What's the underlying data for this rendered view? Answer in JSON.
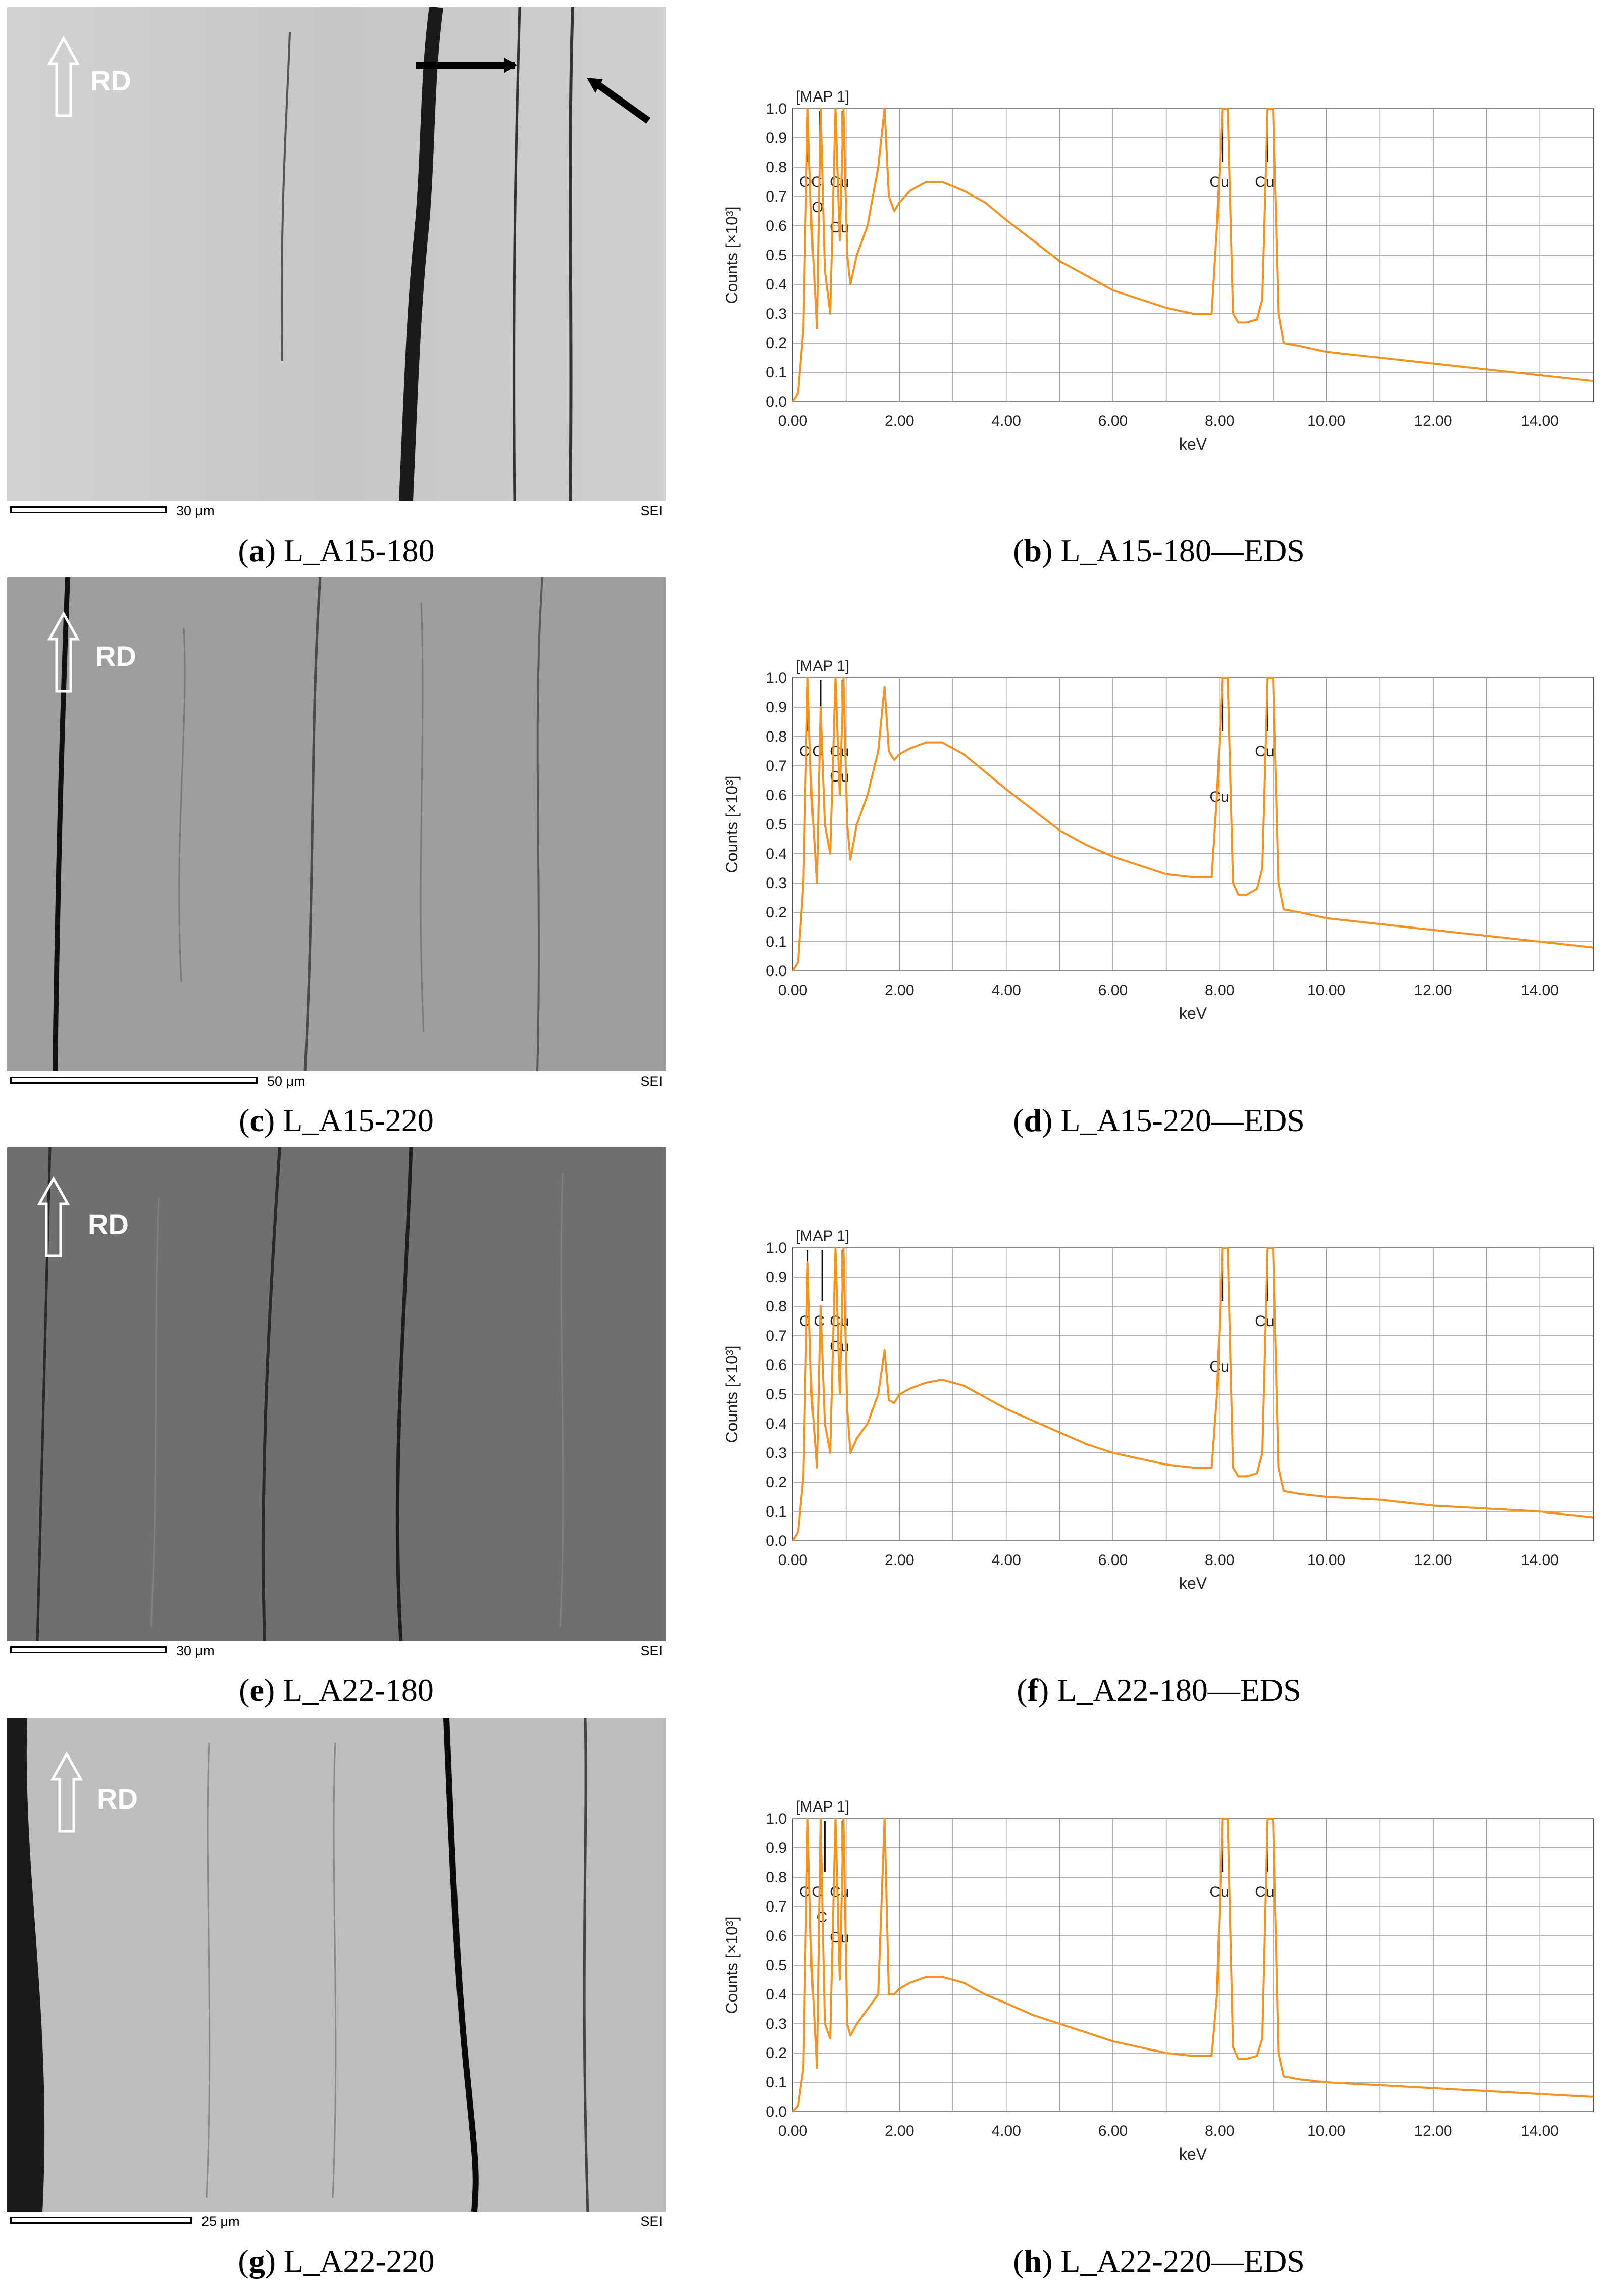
{
  "panels": [
    {
      "letter": "a",
      "caption": "L_A15-180",
      "scale_label": "30 μm",
      "detector": "SEI",
      "direction": "RD",
      "tone": "#c9c9c9"
    },
    {
      "letter": "c",
      "caption": "L_A15-220",
      "scale_label": "50 μm",
      "detector": "SEI",
      "direction": "RD",
      "tone": "#9b9b9b"
    },
    {
      "letter": "e",
      "caption": "L_A22-180",
      "scale_label": "30 μm",
      "detector": "SEI",
      "direction": "RD",
      "tone": "#6e6e6e"
    },
    {
      "letter": "g",
      "caption": "L_A22-220",
      "scale_label": "25 μm",
      "detector": "SEI",
      "direction": "RD",
      "tone": "#c0c0c0"
    }
  ],
  "eds_captions": [
    {
      "letter": "b",
      "caption": "L_A15-180—EDS"
    },
    {
      "letter": "d",
      "caption": "L_A15-220—EDS"
    },
    {
      "letter": "f",
      "caption": "L_A22-180—EDS"
    },
    {
      "letter": "h",
      "caption": "L_A22-220—EDS"
    }
  ],
  "chart_data": [
    {
      "type": "line",
      "title": "[MAP 1]",
      "xlabel": "keV",
      "ylabel": "Counts [×10³]",
      "xlim": [
        0,
        15
      ],
      "ylim": [
        0,
        1.0
      ],
      "x_ticks": [
        "0.00",
        "2.00",
        "4.00",
        "6.00",
        "8.00",
        "10.00",
        "12.00",
        "14.00"
      ],
      "y_ticks": [
        "0.0",
        "0.1",
        "0.2",
        "0.3",
        "0.4",
        "0.5",
        "0.6",
        "0.7",
        "0.8",
        "0.9",
        "1.0"
      ],
      "grid": true,
      "line_color": "#f39322",
      "series": [
        {
          "x": [
            0.0,
            0.1,
            0.2,
            0.28,
            0.35,
            0.45,
            0.52,
            0.6,
            0.7,
            0.8,
            0.88,
            0.95,
            1.02,
            1.08,
            1.2,
            1.4,
            1.6,
            1.72,
            1.8,
            1.9,
            2.0,
            2.2,
            2.5,
            2.8,
            3.2,
            3.6,
            4.0,
            4.5,
            5.0,
            5.5,
            6.0,
            6.5,
            7.0,
            7.5,
            7.85,
            7.95,
            8.05,
            8.15,
            8.25,
            8.35,
            8.5,
            8.7,
            8.8,
            8.9,
            9.0,
            9.1,
            9.2,
            9.5,
            10.0,
            11.0,
            12.0,
            13.0,
            14.0,
            15.0
          ],
          "y": [
            0.0,
            0.03,
            0.25,
            1.0,
            0.6,
            0.25,
            1.0,
            0.45,
            0.3,
            1.0,
            0.55,
            1.0,
            0.5,
            0.4,
            0.5,
            0.6,
            0.8,
            1.0,
            0.7,
            0.65,
            0.68,
            0.72,
            0.75,
            0.75,
            0.72,
            0.68,
            0.62,
            0.55,
            0.48,
            0.43,
            0.38,
            0.35,
            0.32,
            0.3,
            0.3,
            0.6,
            1.0,
            1.0,
            0.3,
            0.27,
            0.27,
            0.28,
            0.35,
            1.0,
            1.0,
            0.3,
            0.2,
            0.19,
            0.17,
            0.15,
            0.13,
            0.11,
            0.09,
            0.07
          ]
        }
      ],
      "element_markers": [
        {
          "label": "C",
          "x": 0.28
        },
        {
          "label": "C",
          "x": 0.5
        },
        {
          "label": "Cu",
          "x": 0.93
        },
        {
          "label": "O",
          "x": 0.52
        },
        {
          "label": "Cu",
          "x": 0.93
        },
        {
          "label": "Cu",
          "x": 8.05
        },
        {
          "label": "Cu",
          "x": 8.9
        }
      ]
    },
    {
      "type": "line",
      "title": "[MAP 1]",
      "xlabel": "keV",
      "ylabel": "Counts [×10³]",
      "xlim": [
        0,
        15
      ],
      "ylim": [
        0,
        1.0
      ],
      "x_ticks": [
        "0.00",
        "2.00",
        "4.00",
        "6.00",
        "8.00",
        "10.00",
        "12.00",
        "14.00"
      ],
      "y_ticks": [
        "0.0",
        "0.1",
        "0.2",
        "0.3",
        "0.4",
        "0.5",
        "0.6",
        "0.7",
        "0.8",
        "0.9",
        "1.0"
      ],
      "grid": true,
      "line_color": "#f39322",
      "series": [
        {
          "x": [
            0.0,
            0.1,
            0.2,
            0.28,
            0.35,
            0.45,
            0.52,
            0.6,
            0.7,
            0.8,
            0.88,
            0.95,
            1.02,
            1.08,
            1.2,
            1.4,
            1.6,
            1.72,
            1.8,
            1.9,
            2.0,
            2.2,
            2.5,
            2.8,
            3.2,
            3.6,
            4.0,
            4.5,
            5.0,
            5.5,
            6.0,
            6.5,
            7.0,
            7.5,
            7.85,
            7.95,
            8.05,
            8.15,
            8.25,
            8.35,
            8.5,
            8.7,
            8.8,
            8.9,
            9.0,
            9.1,
            9.2,
            9.5,
            10.0,
            11.0,
            12.0,
            13.0,
            14.0,
            15.0
          ],
          "y": [
            0.0,
            0.03,
            0.3,
            1.0,
            0.6,
            0.3,
            0.9,
            0.5,
            0.4,
            1.0,
            0.6,
            1.0,
            0.5,
            0.38,
            0.5,
            0.6,
            0.75,
            0.97,
            0.75,
            0.72,
            0.74,
            0.76,
            0.78,
            0.78,
            0.74,
            0.68,
            0.62,
            0.55,
            0.48,
            0.43,
            0.39,
            0.36,
            0.33,
            0.32,
            0.32,
            0.6,
            1.0,
            1.0,
            0.3,
            0.26,
            0.26,
            0.28,
            0.35,
            1.0,
            1.0,
            0.3,
            0.21,
            0.2,
            0.18,
            0.16,
            0.14,
            0.12,
            0.1,
            0.08
          ]
        }
      ],
      "element_markers": [
        {
          "label": "C",
          "x": 0.28
        },
        {
          "label": "C",
          "x": 0.52
        },
        {
          "label": "Cu",
          "x": 0.93
        },
        {
          "label": "Cu",
          "x": 0.93
        },
        {
          "label": "Cu",
          "x": 8.05
        },
        {
          "label": "Cu",
          "x": 8.9
        }
      ]
    },
    {
      "type": "line",
      "title": "[MAP 1]",
      "xlabel": "keV",
      "ylabel": "Counts [×10³]",
      "xlim": [
        0,
        15
      ],
      "ylim": [
        0,
        1.0
      ],
      "x_ticks": [
        "0.00",
        "2.00",
        "4.00",
        "6.00",
        "8.00",
        "10.00",
        "12.00",
        "14.00"
      ],
      "y_ticks": [
        "0.0",
        "0.1",
        "0.2",
        "0.3",
        "0.4",
        "0.5",
        "0.6",
        "0.7",
        "0.8",
        "0.9",
        "1.0"
      ],
      "grid": true,
      "line_color": "#f39322",
      "series": [
        {
          "x": [
            0.0,
            0.1,
            0.2,
            0.28,
            0.35,
            0.45,
            0.52,
            0.6,
            0.7,
            0.8,
            0.88,
            0.95,
            1.02,
            1.08,
            1.2,
            1.4,
            1.6,
            1.72,
            1.8,
            1.9,
            2.0,
            2.2,
            2.5,
            2.8,
            3.2,
            3.6,
            4.0,
            4.5,
            5.0,
            5.5,
            6.0,
            6.5,
            7.0,
            7.5,
            7.85,
            7.95,
            8.05,
            8.15,
            8.25,
            8.35,
            8.5,
            8.7,
            8.8,
            8.9,
            9.0,
            9.1,
            9.2,
            9.5,
            10.0,
            11.0,
            12.0,
            13.0,
            14.0,
            15.0
          ],
          "y": [
            0.0,
            0.03,
            0.22,
            0.95,
            0.5,
            0.25,
            0.8,
            0.4,
            0.3,
            1.0,
            0.5,
            1.0,
            0.45,
            0.3,
            0.35,
            0.4,
            0.5,
            0.65,
            0.48,
            0.47,
            0.5,
            0.52,
            0.54,
            0.55,
            0.53,
            0.49,
            0.45,
            0.41,
            0.37,
            0.33,
            0.3,
            0.28,
            0.26,
            0.25,
            0.25,
            0.5,
            1.0,
            1.0,
            0.25,
            0.22,
            0.22,
            0.23,
            0.3,
            1.0,
            1.0,
            0.25,
            0.17,
            0.16,
            0.15,
            0.14,
            0.12,
            0.11,
            0.1,
            0.08
          ]
        }
      ],
      "element_markers": [
        {
          "label": "C",
          "x": 0.28
        },
        {
          "label": "C",
          "x": 0.55
        },
        {
          "label": "Cu",
          "x": 0.93
        },
        {
          "label": "Cu",
          "x": 0.93
        },
        {
          "label": "Cu",
          "x": 8.05
        },
        {
          "label": "Cu",
          "x": 8.9
        }
      ]
    },
    {
      "type": "line",
      "title": "[MAP 1]",
      "xlabel": "keV",
      "ylabel": "Counts [×10³]",
      "xlim": [
        0,
        15
      ],
      "ylim": [
        0,
        1.0
      ],
      "x_ticks": [
        "0.00",
        "2.00",
        "4.00",
        "6.00",
        "8.00",
        "10.00",
        "12.00",
        "14.00"
      ],
      "y_ticks": [
        "0.0",
        "0.1",
        "0.2",
        "0.3",
        "0.4",
        "0.5",
        "0.6",
        "0.7",
        "0.8",
        "0.9",
        "1.0"
      ],
      "grid": true,
      "line_color": "#f39322",
      "series": [
        {
          "x": [
            0.0,
            0.1,
            0.2,
            0.28,
            0.35,
            0.45,
            0.52,
            0.6,
            0.7,
            0.8,
            0.88,
            0.95,
            1.02,
            1.08,
            1.2,
            1.4,
            1.6,
            1.72,
            1.8,
            1.9,
            2.0,
            2.2,
            2.5,
            2.8,
            3.2,
            3.6,
            4.0,
            4.5,
            5.0,
            5.5,
            6.0,
            6.5,
            7.0,
            7.5,
            7.85,
            7.95,
            8.05,
            8.15,
            8.25,
            8.35,
            8.5,
            8.7,
            8.8,
            8.9,
            9.0,
            9.1,
            9.2,
            9.5,
            10.0,
            11.0,
            12.0,
            13.0,
            14.0,
            15.0
          ],
          "y": [
            0.0,
            0.02,
            0.15,
            1.0,
            0.5,
            0.15,
            1.0,
            0.3,
            0.25,
            1.0,
            0.45,
            1.0,
            0.3,
            0.26,
            0.3,
            0.35,
            0.4,
            1.0,
            0.4,
            0.4,
            0.42,
            0.44,
            0.46,
            0.46,
            0.44,
            0.4,
            0.37,
            0.33,
            0.3,
            0.27,
            0.24,
            0.22,
            0.2,
            0.19,
            0.19,
            0.4,
            1.0,
            1.0,
            0.22,
            0.18,
            0.18,
            0.19,
            0.25,
            1.0,
            1.0,
            0.2,
            0.12,
            0.11,
            0.1,
            0.09,
            0.08,
            0.07,
            0.06,
            0.05
          ]
        }
      ],
      "element_markers": [
        {
          "label": "C",
          "x": 0.28
        },
        {
          "label": "O",
          "x": 0.52
        },
        {
          "label": "Cu",
          "x": 0.93
        },
        {
          "label": "C",
          "x": 0.6
        },
        {
          "label": "Cu",
          "x": 0.93
        },
        {
          "label": "Cu",
          "x": 8.05
        },
        {
          "label": "Cu",
          "x": 8.9
        }
      ]
    }
  ]
}
